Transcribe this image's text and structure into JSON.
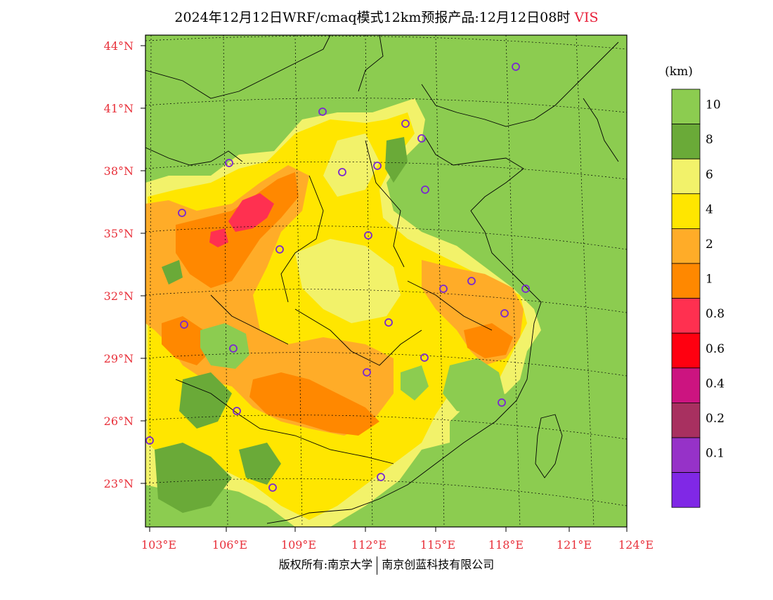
{
  "title": {
    "main": "2024年12月12日WRF/cmaq模式12km预报产品:12月12日08时",
    "variable": "VIS"
  },
  "footer": {
    "left": "版权所有:南京大学",
    "right": "南京创蓝科技有限公司"
  },
  "axes": {
    "lat_labels": [
      "44°N",
      "41°N",
      "38°N",
      "35°N",
      "32°N",
      "29°N",
      "26°N",
      "23°N"
    ],
    "lon_labels": [
      "103°E",
      "106°E",
      "109°E",
      "112°E",
      "115°E",
      "118°E",
      "121°E",
      "124°E"
    ]
  },
  "legend": {
    "unit": "(km)",
    "levels": [
      {
        "label": "10",
        "color": "#8ccc50"
      },
      {
        "label": "8",
        "color": "#6aaa38"
      },
      {
        "label": "6",
        "color": "#f2f26a"
      },
      {
        "label": "4",
        "color": "#ffe600"
      },
      {
        "label": "2",
        "color": "#ffac28"
      },
      {
        "label": "1",
        "color": "#ff8800"
      },
      {
        "label": "0.8",
        "color": "#ff3050"
      },
      {
        "label": "0.6",
        "color": "#ff0010"
      },
      {
        "label": "0.4",
        "color": "#cc1480"
      },
      {
        "label": "0.2",
        "color": "#a83060"
      },
      {
        "label": "0.1",
        "color": "#9632c8"
      },
      {
        "label": "",
        "color": "#8028e6"
      }
    ]
  },
  "colors": {
    "good": "#8ccc50",
    "good_dark": "#6aaa38",
    "light_yellow": "#f2f26a",
    "yellow": "#ffe600",
    "light_orange": "#ffac28",
    "orange": "#ff8800",
    "pink_red": "#ff3050",
    "station": "#7a28d0"
  }
}
